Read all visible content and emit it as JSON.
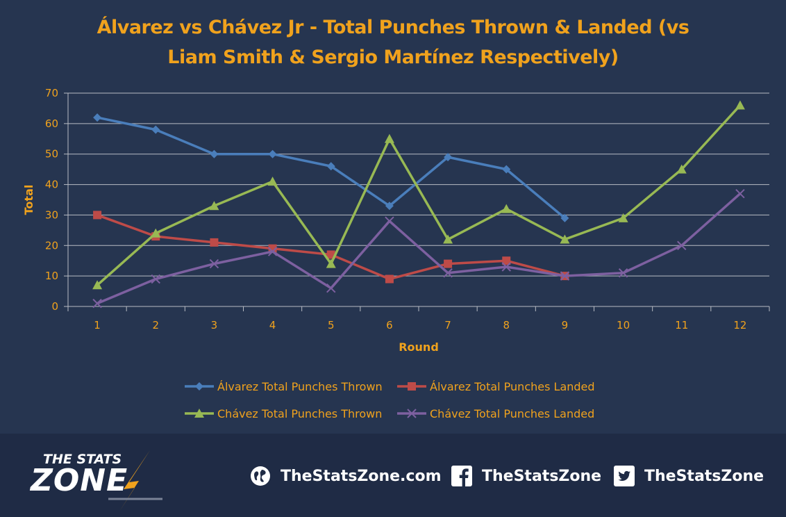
{
  "chart_data": {
    "type": "line",
    "title": "Álvarez vs Chávez Jr - Total Punches Thrown & Landed (vs Liam Smith & Sergio Martínez Respectively)",
    "title_lines": [
      "Álvarez vs Chávez Jr - Total Punches Thrown & Landed (vs",
      "Liam Smith & Sergio Martínez Respectively)"
    ],
    "xlabel": "Round",
    "ylabel": "Total",
    "x": [
      "1",
      "2",
      "3",
      "4",
      "5",
      "6",
      "7",
      "8",
      "9",
      "10",
      "11",
      "12"
    ],
    "yticks": [
      "0",
      "10",
      "20",
      "30",
      "40",
      "50",
      "60",
      "70"
    ],
    "ylim": [
      0,
      70
    ],
    "grid": true,
    "legend_position": "bottom",
    "series": [
      {
        "name": "Álvarez Total Punches Thrown",
        "color": "#4a7ebb",
        "marker": "diamond",
        "values": [
          62,
          58,
          50,
          50,
          46,
          33,
          49,
          45,
          29,
          null,
          null,
          null
        ]
      },
      {
        "name": "Álvarez Total Punches Landed",
        "color": "#be4b48",
        "marker": "square",
        "values": [
          30,
          23,
          21,
          19,
          17,
          9,
          14,
          15,
          10,
          null,
          null,
          null
        ]
      },
      {
        "name": "Chávez Total Punches Thrown",
        "color": "#98b954",
        "marker": "triangle",
        "values": [
          7,
          24,
          33,
          41,
          14,
          55,
          22,
          32,
          22,
          29,
          45,
          66
        ]
      },
      {
        "name": "Chávez Total Punches Landed",
        "color": "#7d60a0",
        "marker": "x",
        "values": [
          1,
          9,
          14,
          18,
          6,
          28,
          11,
          13,
          10,
          11,
          20,
          37
        ]
      }
    ]
  },
  "footer": {
    "logo_top": "THE STATS",
    "logo_bottom": "ZONE",
    "website": "TheStatsZone.com",
    "facebook": "TheStatsZone",
    "twitter": "TheStatsZone"
  },
  "colors": {
    "background": "#263550",
    "footer_background": "#1f2b45",
    "accent": "#f0a21d",
    "grid": "#b8bcc4"
  }
}
